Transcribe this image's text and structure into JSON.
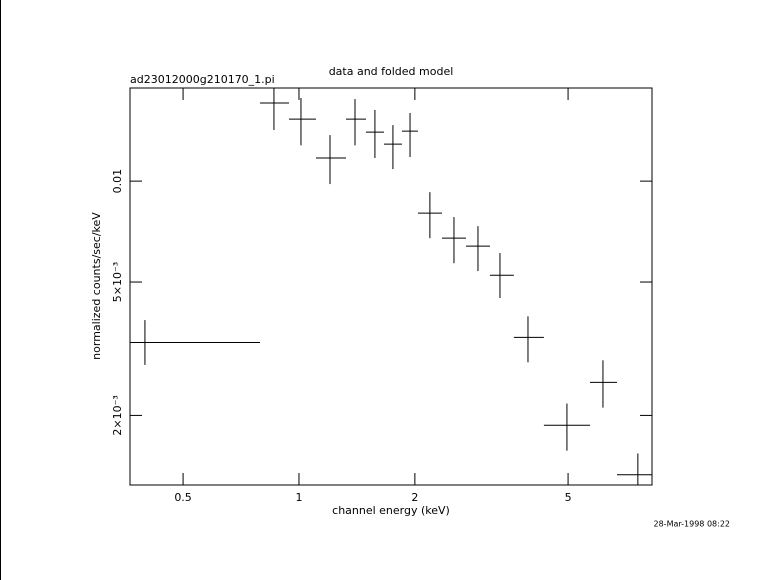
{
  "chart_data": {
    "type": "scatter",
    "title": "data and folded model",
    "subtitle": "ad23012000g210170_1.pi",
    "x_label": "channel energy (keV)",
    "y_label": "normalized counts/sec/keV",
    "timestamp": "28-Mar-1998 08:22",
    "x_log": true,
    "y_log": true,
    "xlim": [
      0.364,
      8.26
    ],
    "ylim": [
      0.00124,
      0.01896
    ],
    "xticks": [
      0.5,
      1,
      2,
      5
    ],
    "yticks": [
      {
        "value": 0.01,
        "label": "0.01"
      },
      {
        "value": 0.005,
        "label": "5×10⁻³"
      },
      {
        "value": 0.002,
        "label": "2×10⁻³"
      }
    ],
    "color": "#000000",
    "x": [
      0.398,
      0.861,
      1.012,
      1.204,
      1.398,
      1.575,
      1.754,
      1.943,
      2.188,
      2.527,
      2.917,
      3.327,
      3.934,
      4.966,
      6.16,
      7.59
    ],
    "x_low": [
      0.3,
      0.792,
      0.942,
      1.107,
      1.325,
      1.493,
      1.663,
      1.851,
      2.037,
      2.352,
      2.715,
      3.134,
      3.616,
      4.327,
      5.7,
      6.7
    ],
    "x_high": [
      0.792,
      0.942,
      1.107,
      1.325,
      1.493,
      1.663,
      1.851,
      2.037,
      2.352,
      2.715,
      3.134,
      3.616,
      4.327,
      5.7,
      6.7,
      8.26
    ],
    "series": [
      {
        "values": [
          0.0033,
          0.0171,
          0.01531,
          0.01172,
          0.01531,
          0.014,
          0.01289,
          0.0141,
          0.00803,
          0.00676,
          0.0064,
          0.00524,
          0.00342,
          0.00187,
          0.00251,
          0.00133
        ],
        "y_low": [
          0.00283,
          0.01421,
          0.01279,
          0.0098,
          0.01279,
          0.01172,
          0.01086,
          0.0118,
          0.00676,
          0.00569,
          0.00539,
          0.00448,
          0.00288,
          0.00157,
          0.00211,
          0.0012
        ],
        "y_high": [
          0.00385,
          0.0195,
          0.0177,
          0.01372,
          0.01757,
          0.0163,
          0.01469,
          0.01597,
          0.00927,
          0.00781,
          0.00734,
          0.0061,
          0.00395,
          0.00217,
          0.00292,
          0.00154
        ]
      }
    ]
  }
}
